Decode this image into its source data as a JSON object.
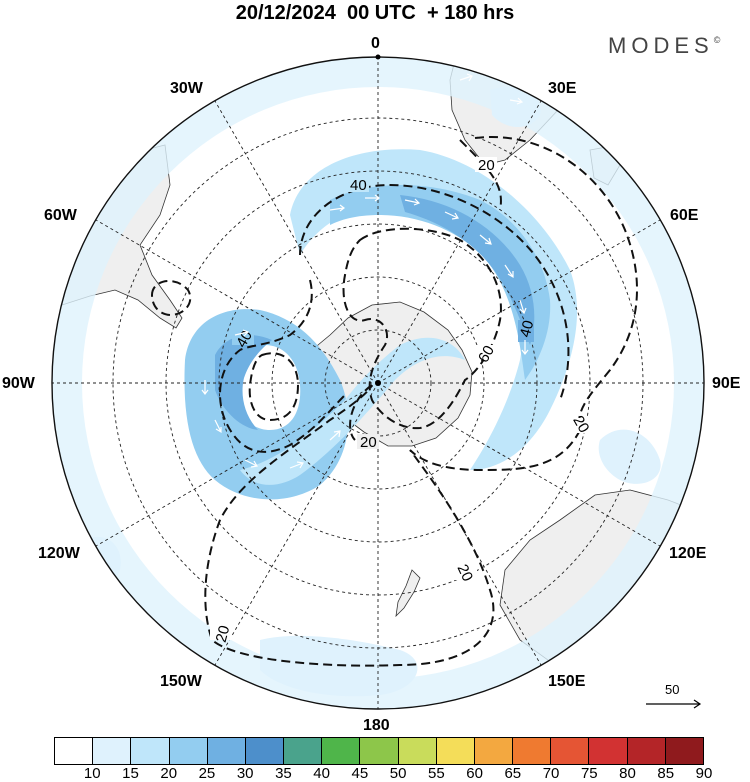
{
  "header": {
    "title": "20/12/2024  00 UTC  + 180 hrs",
    "brand": "MODES",
    "brand_mark": "©"
  },
  "map": {
    "projection": "south-polar-stereographic",
    "longitude_labels": [
      "0",
      "30E",
      "60E",
      "90E",
      "120E",
      "150E",
      "180",
      "150W",
      "120W",
      "90W",
      "60W",
      "30W"
    ],
    "contours": [
      {
        "label": "20",
        "style": "dashed"
      },
      {
        "label": "40",
        "style": "dashed"
      },
      {
        "label": "60",
        "style": "dashed"
      }
    ],
    "wind_vectors_color": "#ffffff",
    "land_color": "#f0f0f0",
    "reference_vector": {
      "label": "50"
    }
  },
  "colorbar": {
    "ticks": [
      "10",
      "15",
      "20",
      "25",
      "30",
      "35",
      "40",
      "45",
      "50",
      "55",
      "60",
      "65",
      "70",
      "75",
      "80",
      "85",
      "90"
    ],
    "colors": [
      "#ffffff",
      "#dff2fd",
      "#bfe6fa",
      "#93cdf0",
      "#6fb0e2",
      "#4d8fcb",
      "#4aa38c",
      "#4fb54a",
      "#8dc64a",
      "#c9dc5b",
      "#f4dd59",
      "#f3a840",
      "#ef7a30",
      "#e55534",
      "#d23232",
      "#b42528",
      "#8f1a1d"
    ]
  }
}
